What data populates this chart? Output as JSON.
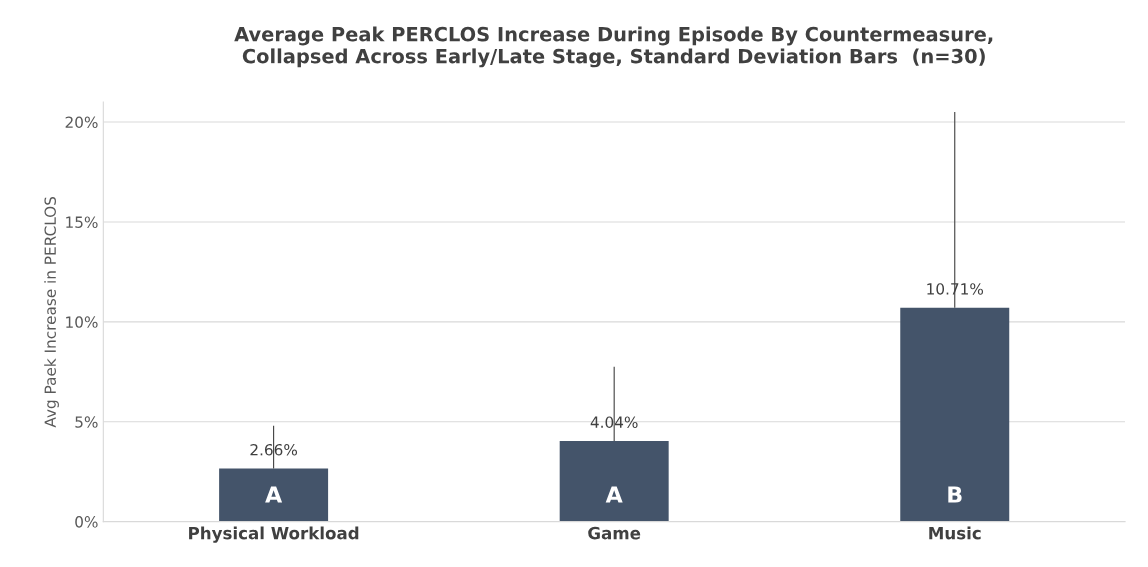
{
  "chart_data": {
    "type": "bar",
    "title": "Average Peak PERCLOS Increase During Episode By Countermeasure,\nCollapsed Across Early/Late Stage, Standard Deviation Bars  (n=30)",
    "ylabel": "Avg Paek Increase in PERCLOS",
    "categories": [
      "Physical Workload",
      "Game",
      "Music"
    ],
    "values": [
      2.66,
      4.04,
      10.71
    ],
    "value_labels": [
      "2.66%",
      "4.04%",
      "10.71%"
    ],
    "errors": [
      [
        2.66,
        4.8
      ],
      [
        4.04,
        7.75
      ],
      [
        10.71,
        20.5
      ]
    ],
    "color": "#44546a",
    "ylim": [
      0,
      21
    ],
    "yticks": [
      {
        "value": 0,
        "label": "0%"
      },
      {
        "value": 5,
        "label": "5%"
      },
      {
        "value": 10,
        "label": "10%"
      },
      {
        "value": 15,
        "label": "15%"
      },
      {
        "value": 20,
        "label": "20%"
      }
    ],
    "grid": "y",
    "annotations": [
      "A",
      "A",
      "B"
    ]
  }
}
